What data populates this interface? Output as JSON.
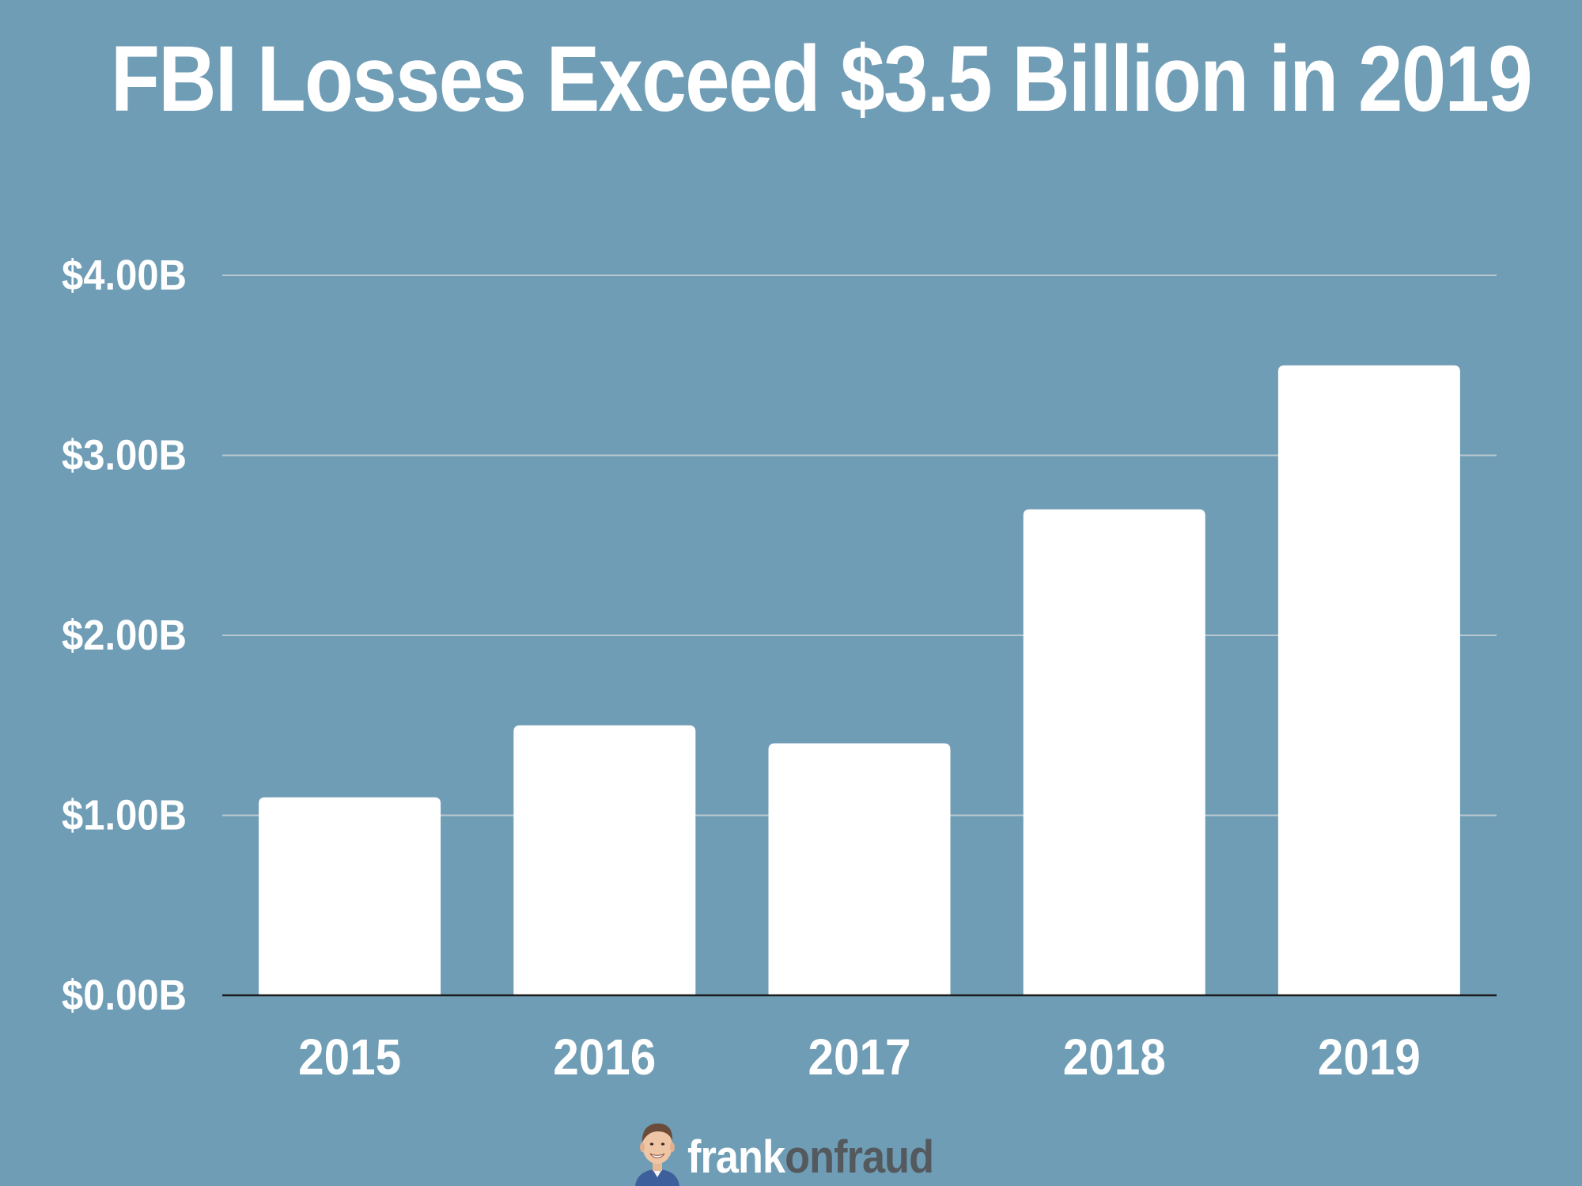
{
  "colors": {
    "background": "#6f9db5",
    "bar": "#ffffff",
    "gridline": "#b9c7cf",
    "baseline": "#1a1a1a",
    "text": "#ffffff",
    "brand_secondary": "#54595e"
  },
  "chart_data": {
    "type": "bar",
    "title": "FBI Losses Exceed $3.5 Billion in 2019",
    "xlabel": "",
    "ylabel": "",
    "categories": [
      "2015",
      "2016",
      "2017",
      "2018",
      "2019"
    ],
    "values": [
      1.1,
      1.5,
      1.4,
      2.7,
      3.5
    ],
    "unit": "billion USD",
    "ylim": [
      0,
      4
    ],
    "yticks": [
      0,
      1,
      2,
      3,
      4
    ],
    "ytick_labels": [
      "$0.00B",
      "$1.00B",
      "$2.00B",
      "$3.00B",
      "$4.00B"
    ],
    "grid": true,
    "legend": "none"
  },
  "brand": {
    "avatar_icon": "frank-avatar-icon",
    "name_part1": "frank",
    "name_part2": "onfraud"
  }
}
